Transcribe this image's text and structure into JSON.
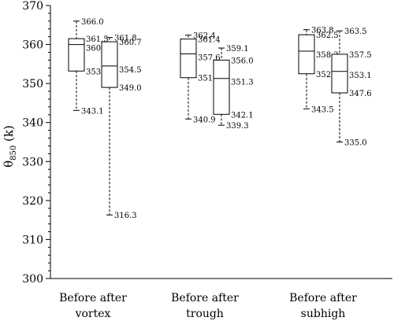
{
  "chart_data": {
    "type": "box",
    "ylabel": "θ850 (k)",
    "ylabel_base": "θ",
    "ylabel_sub": "850",
    "ylabel_unit": " (k)",
    "ylim": [
      300,
      370
    ],
    "yticks": [
      300,
      310,
      320,
      330,
      340,
      350,
      360,
      370
    ],
    "minor_tick_step": 2,
    "groups": [
      {
        "label_line1": "Before after",
        "label_line2": "vortex",
        "boxes": [
          {
            "name": "before",
            "min": 343.1,
            "q1": 353.2,
            "median": 360.0,
            "q3": 361.5,
            "max": 366.0
          },
          {
            "name": "after",
            "min": 316.3,
            "q1": 349.0,
            "median": 354.5,
            "q3": 360.7,
            "max": 361.8
          }
        ]
      },
      {
        "label_line1": "Before after",
        "label_line2": "trough",
        "boxes": [
          {
            "name": "before",
            "min": 340.9,
            "q1": 351.5,
            "median": 357.6,
            "q3": 361.4,
            "max": 362.4
          },
          {
            "name": "after",
            "min": 339.3,
            "q1": 342.1,
            "median": 351.3,
            "q3": 356.0,
            "max": 359.1
          }
        ]
      },
      {
        "label_line1": "Before after",
        "label_line2": "subhigh",
        "boxes": [
          {
            "name": "before",
            "min": 343.5,
            "q1": 352.5,
            "median": 358.3,
            "q3": 362.5,
            "max": 363.8
          },
          {
            "name": "after",
            "min": 335.0,
            "q1": 347.6,
            "median": 353.1,
            "q3": 357.5,
            "max": 363.5
          }
        ]
      }
    ]
  }
}
